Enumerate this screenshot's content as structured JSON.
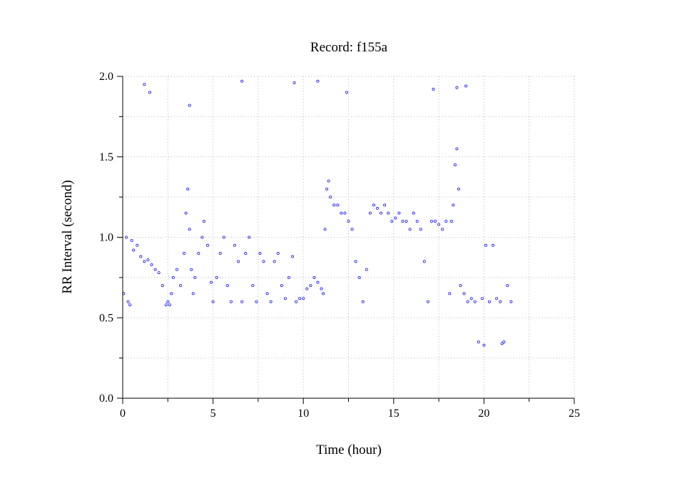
{
  "chart_data": {
    "type": "scatter",
    "title": "Record:  f155a",
    "xlabel": "Time (hour)",
    "ylabel": "RR Interval (second)",
    "xlim": [
      0,
      25
    ],
    "ylim": [
      0,
      2
    ],
    "x_ticks": [
      0,
      5,
      10,
      15,
      20,
      25
    ],
    "x_minor_ticks": [
      2.5,
      7.5,
      12.5,
      17.5,
      22.5
    ],
    "y_ticks": [
      0.0,
      0.5,
      1.0,
      1.5,
      2.0
    ],
    "y_minor_ticks": [
      0.25,
      0.75,
      1.25,
      1.75
    ],
    "x_tick_labels": [
      "0",
      "5",
      "10",
      "15",
      "20",
      "25"
    ],
    "y_tick_labels": [
      "0.0",
      "0.5",
      "1.0",
      "1.5",
      "2.0"
    ],
    "grid": true,
    "marker": "open-circle",
    "point_color": "#1a1aff",
    "series": [
      {
        "x": [
          0.05,
          0.2,
          0.3,
          0.4,
          0.5,
          0.6,
          0.8,
          1.0,
          1.2,
          1.4,
          1.6,
          1.8,
          2.0,
          2.2,
          2.4,
          2.5,
          2.6,
          2.7,
          2.8,
          3.0,
          3.2,
          3.4,
          3.5,
          3.6,
          3.7,
          3.8,
          3.9,
          4.0,
          4.2,
          4.4,
          4.5,
          4.7,
          4.9,
          5.0,
          5.2,
          5.4,
          5.6,
          5.8,
          6.0,
          6.2,
          6.4,
          6.6,
          6.8,
          7.0,
          7.2,
          7.4,
          7.6,
          7.8,
          8.0,
          8.2,
          8.4,
          8.6,
          8.8,
          9.0,
          9.2,
          9.4,
          9.6,
          9.8,
          10.0,
          10.2,
          10.4,
          10.6,
          10.8,
          11.0,
          11.1,
          11.2,
          11.3,
          11.4,
          11.5,
          11.7,
          11.9,
          12.1,
          12.3,
          12.5,
          12.7,
          12.9,
          13.1,
          13.3,
          13.5,
          13.7,
          13.9,
          14.1,
          14.3,
          14.5,
          14.7,
          14.9,
          15.1,
          15.3,
          15.5,
          15.7,
          15.9,
          16.1,
          16.3,
          16.5,
          16.7,
          16.9,
          17.1,
          17.3,
          17.5,
          17.7,
          17.9,
          18.1,
          18.2,
          18.3,
          18.4,
          18.5,
          18.6,
          18.7,
          18.9,
          19.1,
          19.3,
          19.5,
          19.7,
          19.9,
          20.1,
          20.3,
          20.5,
          20.7,
          20.9,
          21.1,
          21.3,
          21.5,
          1.2,
          1.5,
          3.7,
          6.6,
          9.5,
          10.8,
          12.4,
          17.2,
          18.5,
          19.0,
          20.0,
          21.0
        ],
        "y": [
          0.65,
          1.0,
          0.6,
          0.58,
          0.98,
          0.92,
          0.95,
          0.88,
          0.85,
          0.86,
          0.83,
          0.8,
          0.78,
          0.7,
          0.58,
          0.6,
          0.58,
          0.65,
          0.75,
          0.8,
          0.7,
          0.9,
          1.15,
          1.3,
          1.05,
          0.8,
          0.65,
          0.75,
          0.9,
          1.0,
          1.1,
          0.95,
          0.72,
          0.6,
          0.75,
          0.9,
          1.0,
          0.7,
          0.6,
          0.95,
          0.85,
          0.6,
          0.9,
          1.0,
          0.7,
          0.6,
          0.9,
          0.85,
          0.65,
          0.6,
          0.85,
          0.9,
          0.7,
          0.62,
          0.75,
          0.88,
          0.6,
          0.62,
          0.62,
          0.68,
          0.7,
          0.75,
          0.72,
          0.68,
          0.65,
          1.05,
          1.3,
          1.35,
          1.25,
          1.2,
          1.2,
          1.15,
          1.15,
          1.1,
          1.05,
          0.85,
          0.75,
          0.6,
          0.8,
          1.15,
          1.2,
          1.18,
          1.15,
          1.2,
          1.15,
          1.1,
          1.12,
          1.15,
          1.1,
          1.1,
          1.05,
          1.15,
          1.1,
          1.05,
          0.85,
          0.6,
          1.1,
          1.1,
          1.08,
          1.05,
          1.1,
          0.65,
          1.1,
          1.2,
          1.45,
          1.55,
          1.3,
          0.7,
          0.65,
          0.6,
          0.62,
          0.6,
          0.35,
          0.62,
          0.95,
          0.6,
          0.95,
          0.62,
          0.6,
          0.35,
          0.7,
          0.6,
          1.95,
          1.9,
          1.82,
          1.97,
          1.96,
          1.97,
          1.9,
          1.92,
          1.93,
          1.94,
          0.33,
          0.34
        ]
      }
    ]
  }
}
